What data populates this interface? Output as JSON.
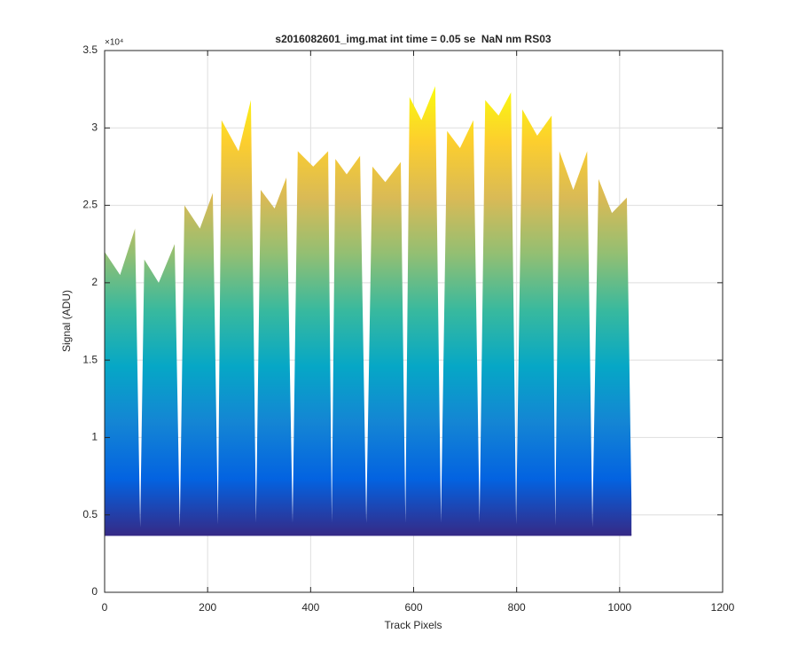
{
  "chart_data": {
    "type": "area",
    "title": "s2016082601_img.mat int time = 0.05 se  NaN nm RS03",
    "x_label": "Track Pixels",
    "y_label": "Signal (ADU)",
    "y_exponent_label": "×10⁴",
    "x": [
      0,
      30,
      59,
      69,
      77,
      105,
      136,
      146,
      155,
      185,
      210,
      220,
      227,
      260,
      284,
      294,
      303,
      330,
      353,
      365,
      375,
      405,
      434,
      441,
      448,
      470,
      496,
      508,
      520,
      545,
      575,
      584,
      592,
      615,
      642,
      653,
      665,
      690,
      716,
      728,
      739,
      765,
      789,
      799,
      811,
      840,
      868,
      875,
      883,
      910,
      937,
      947,
      959,
      985,
      1014,
      1023
    ],
    "values": [
      22000,
      20500,
      23500,
      4200,
      21500,
      20000,
      22500,
      4200,
      25000,
      23500,
      25800,
      4400,
      30500,
      28500,
      31800,
      4500,
      26000,
      24800,
      26800,
      4500,
      28500,
      27500,
      28500,
      4500,
      28000,
      27000,
      28200,
      4500,
      27500,
      26500,
      27800,
      4500,
      32000,
      30500,
      32700,
      4500,
      29800,
      28700,
      30500,
      4500,
      31800,
      30800,
      32300,
      4400,
      31200,
      29500,
      30800,
      4300,
      28500,
      26000,
      28500,
      4200,
      26700,
      24500,
      25500,
      5800
    ],
    "baseline": 3700,
    "colormap": [
      "#352a87",
      "#0363e1",
      "#1485d4",
      "#06a7c6",
      "#38b99e",
      "#92bf73",
      "#d9ba56",
      "#fcce2e",
      "#f9fb0e"
    ],
    "xlim": [
      0,
      1200
    ],
    "xticks": [
      0,
      200,
      400,
      600,
      800,
      1000,
      1200
    ],
    "ylim": [
      0,
      35000
    ],
    "yticks": [
      0,
      {
        "value": 5000,
        "label": "0.5"
      },
      {
        "value": 10000,
        "label": "1"
      },
      {
        "value": 15000,
        "label": "1.5"
      },
      {
        "value": 20000,
        "label": "2"
      },
      {
        "value": 25000,
        "label": "2.5"
      },
      {
        "value": 30000,
        "label": "3"
      },
      {
        "value": 35000,
        "label": "3.5"
      }
    ],
    "grid": true
  }
}
